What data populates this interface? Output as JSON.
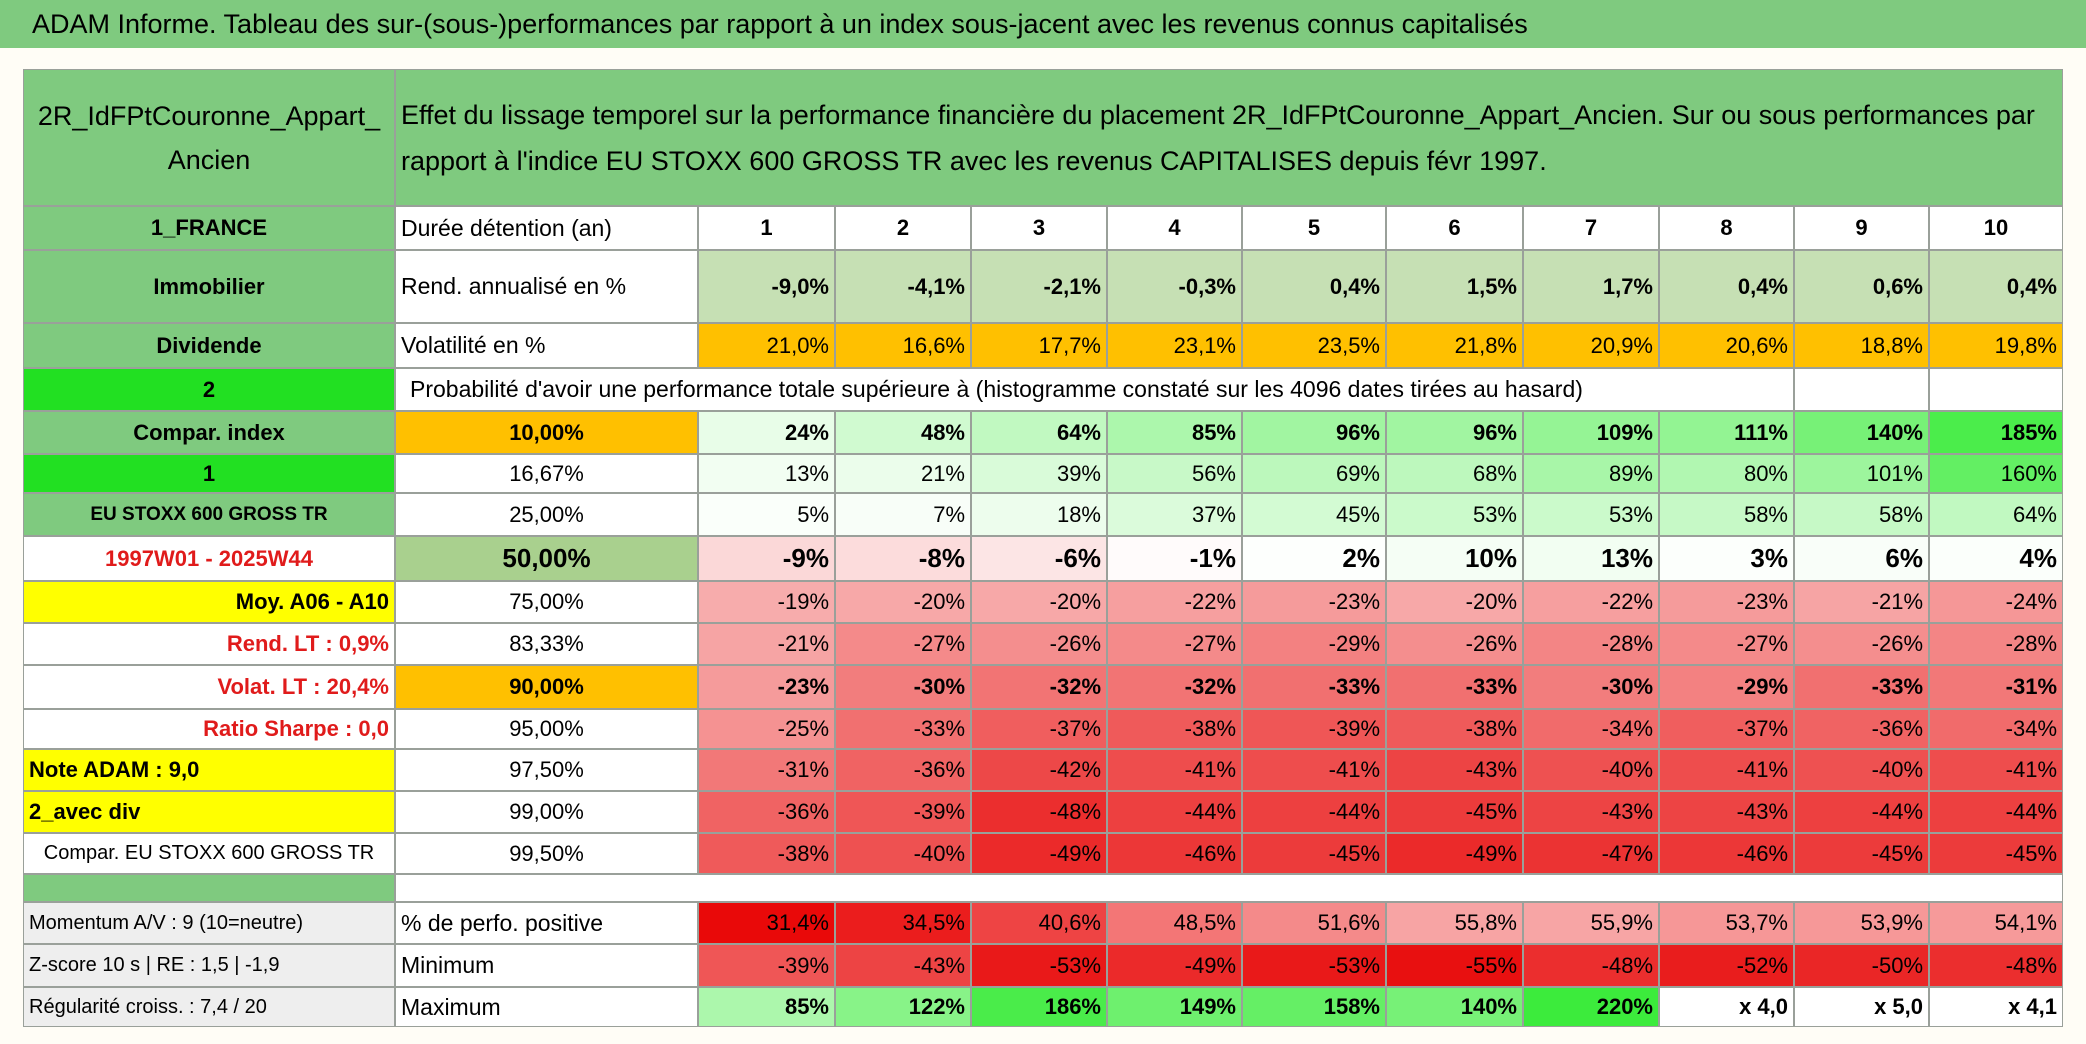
{
  "title": "ADAM Informe. Tableau des sur-(sous-)performances par rapport à un index sous-jacent avec les revenus connus capitalisés",
  "header": {
    "label": "2R_IdFPtCouronne_Appart_Ancien",
    "description": "Effet du lissage temporel sur la performance financière du placement 2R_IdFPtCouronne_Appart_Ancien. Sur ou sous performances par rapport à l'indice EU STOXX 600 GROSS TR avec les revenus CAPITALISES depuis févr 1997."
  },
  "table": {
    "rows": [
      [
        "1_FRANCE",
        "Durée détention (an)",
        "1",
        "2",
        "3",
        "4",
        "5",
        "6",
        "7",
        "8",
        "9",
        "10"
      ],
      [
        "Immobilier",
        "Rend. annualisé en %",
        "-9,0%",
        "-4,1%",
        "-2,1%",
        "-0,3%",
        "0,4%",
        "1,5%",
        "1,7%",
        "0,4%",
        "0,6%",
        "0,4%"
      ],
      [
        "Dividende",
        "Volatilité en %",
        "21,0%",
        "16,6%",
        "17,7%",
        "23,1%",
        "23,5%",
        "21,8%",
        "20,9%",
        "20,6%",
        "18,8%",
        "19,8%"
      ],
      [
        "2",
        "Probabilité d'avoir une performance totale supérieure à (histogramme constaté sur les 4096 dates tirées au hasard)"
      ],
      [
        "Compar. index",
        "10,00%",
        "24%",
        "48%",
        "64%",
        "85%",
        "96%",
        "96%",
        "109%",
        "111%",
        "140%",
        "185%"
      ],
      [
        "1",
        "16,67%",
        "13%",
        "21%",
        "39%",
        "56%",
        "69%",
        "68%",
        "89%",
        "80%",
        "101%",
        "160%"
      ],
      [
        "EU STOXX 600 GROSS TR",
        "25,00%",
        "5%",
        "7%",
        "18%",
        "37%",
        "45%",
        "53%",
        "53%",
        "58%",
        "58%",
        "64%"
      ],
      [
        "1997W01 - 2025W44",
        "50,00%",
        "-9%",
        "-8%",
        "-6%",
        "-1%",
        "2%",
        "10%",
        "13%",
        "3%",
        "6%",
        "4%"
      ],
      [
        "Moy. A06 - A10",
        "75,00%",
        "-19%",
        "-20%",
        "-20%",
        "-22%",
        "-23%",
        "-20%",
        "-22%",
        "-23%",
        "-21%",
        "-24%"
      ],
      [
        "Rend. LT :   0,9%",
        "83,33%",
        "-21%",
        "-27%",
        "-26%",
        "-27%",
        "-29%",
        "-26%",
        "-28%",
        "-27%",
        "-26%",
        "-28%"
      ],
      [
        "Volat. LT :   20,4%",
        "90,00%",
        "-23%",
        "-30%",
        "-32%",
        "-32%",
        "-33%",
        "-33%",
        "-30%",
        "-29%",
        "-33%",
        "-31%"
      ],
      [
        "Ratio Sharpe :    0,0",
        "95,00%",
        "-25%",
        "-33%",
        "-37%",
        "-38%",
        "-39%",
        "-38%",
        "-34%",
        "-37%",
        "-36%",
        "-34%"
      ],
      [
        "Note ADAM : 9,0",
        "97,50%",
        "-31%",
        "-36%",
        "-42%",
        "-41%",
        "-41%",
        "-43%",
        "-40%",
        "-41%",
        "-40%",
        "-41%"
      ],
      [
        "2_avec div",
        "99,00%",
        "-36%",
        "-39%",
        "-48%",
        "-44%",
        "-44%",
        "-45%",
        "-43%",
        "-43%",
        "-44%",
        "-44%"
      ],
      [
        "Compar. EU STOXX 600 GROSS TR",
        "99,50%",
        "-38%",
        "-40%",
        "-49%",
        "-46%",
        "-45%",
        "-49%",
        "-47%",
        "-46%",
        "-45%",
        "-45%"
      ],
      [
        "Momentum A/V : 9 (10=neutre)",
        "% de perfo. positive",
        "31,4%",
        "34,5%",
        "40,6%",
        "48,5%",
        "51,6%",
        "55,8%",
        "55,9%",
        "53,7%",
        "53,9%",
        "54,1%"
      ],
      [
        "Z-score 10 s | RE : 1,5 | -1,9",
        "Minimum",
        "-39%",
        "-43%",
        "-53%",
        "-49%",
        "-53%",
        "-55%",
        "-48%",
        "-52%",
        "-50%",
        "-48%"
      ],
      [
        "Régularité croiss. : 7,4 / 20",
        "Maximum",
        "85%",
        "122%",
        "186%",
        "149%",
        "158%",
        "140%",
        "220%",
        "x 4,0",
        "x 5,0",
        "x 4,1"
      ]
    ]
  }
}
